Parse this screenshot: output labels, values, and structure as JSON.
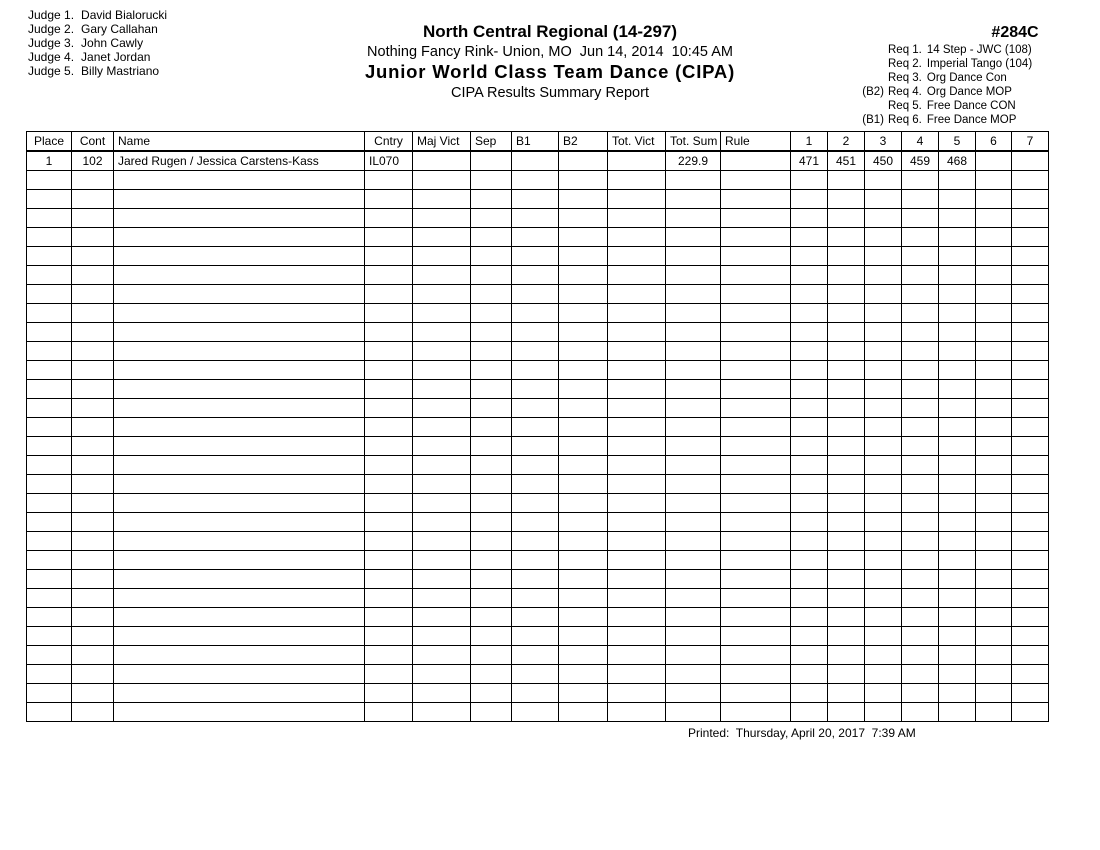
{
  "judges": {
    "items": [
      {
        "label": "Judge 1.",
        "name": "David Bialorucki"
      },
      {
        "label": "Judge 2.",
        "name": "Gary Callahan"
      },
      {
        "label": "Judge 3.",
        "name": "John Cawly"
      },
      {
        "label": "Judge 4.",
        "name": "Janet Jordan"
      },
      {
        "label": "Judge 5.",
        "name": "Billy Mastriano"
      }
    ]
  },
  "header": {
    "event_title": "North Central Regional (14-297)",
    "venue_line": "Nothing Fancy Rink- Union, MO  Jun 14, 2014  10:45 AM",
    "division_title": "Junior World Class Team Dance (CIPA)",
    "report_title": "CIPA Results Summary Report",
    "event_number": "#284C",
    "requirements": [
      {
        "prefix": "",
        "label": "Req 1.",
        "text": "14 Step - JWC (108)"
      },
      {
        "prefix": "",
        "label": "Req 2.",
        "text": "Imperial Tango (104)"
      },
      {
        "prefix": "",
        "label": "Req 3.",
        "text": "Org Dance Con"
      },
      {
        "prefix": "(B2)",
        "label": "Req 4.",
        "text": "Org Dance MOP"
      },
      {
        "prefix": "",
        "label": "Req 5.",
        "text": "Free Dance CON"
      },
      {
        "prefix": "(B1)",
        "label": "Req 6.",
        "text": "Free Dance MOP"
      }
    ]
  },
  "results_table": {
    "columns": [
      {
        "key": "place",
        "label": "Place"
      },
      {
        "key": "cont",
        "label": "Cont"
      },
      {
        "key": "name",
        "label": "Name"
      },
      {
        "key": "cntry",
        "label": "Cntry"
      },
      {
        "key": "maj_vict",
        "label": "Maj Vict"
      },
      {
        "key": "sep",
        "label": "Sep"
      },
      {
        "key": "b1",
        "label": "B1"
      },
      {
        "key": "b2",
        "label": "B2"
      },
      {
        "key": "tot_vict",
        "label": "Tot. Vict"
      },
      {
        "key": "tot_sum",
        "label": "Tot. Sum"
      },
      {
        "key": "rule",
        "label": "Rule"
      },
      {
        "key": "j1",
        "label": "1"
      },
      {
        "key": "j2",
        "label": "2"
      },
      {
        "key": "j3",
        "label": "3"
      },
      {
        "key": "j4",
        "label": "4"
      },
      {
        "key": "j5",
        "label": "5"
      },
      {
        "key": "j6",
        "label": "6"
      },
      {
        "key": "j7",
        "label": "7"
      }
    ],
    "rows": [
      {
        "place": "1",
        "cont": "102",
        "name": "Jared Rugen / Jessica Carstens-Kass",
        "cntry": "IL070",
        "maj_vict": "",
        "sep": "",
        "b1": "",
        "b2": "",
        "tot_vict": "",
        "tot_sum": "229.9",
        "rule": "",
        "j1": "471",
        "j2": "451",
        "j3": "450",
        "j4": "459",
        "j5": "468",
        "j6": "",
        "j7": ""
      }
    ],
    "empty_row_count": 29
  },
  "footer": {
    "printed_line": "Printed:  Thursday, April 20, 2017  7:39 AM"
  }
}
